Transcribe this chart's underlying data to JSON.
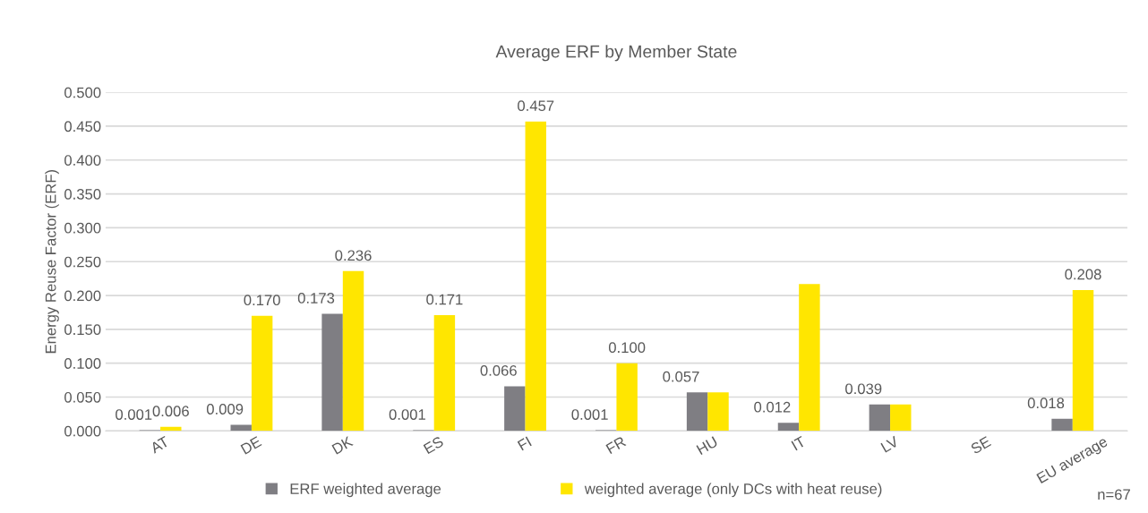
{
  "chart_data": {
    "type": "bar",
    "title": "Average ERF by Member State",
    "ylabel": "Energy Reuse Factor (ERF)",
    "categories": [
      "AT",
      "DE",
      "DK",
      "ES",
      "FI",
      "FR",
      "HU",
      "IT",
      "LV",
      "SE",
      "EU average"
    ],
    "series": [
      {
        "name": "ERF weighted average",
        "color": "#7f7e83",
        "values": [
          0.001,
          0.009,
          0.173,
          0.001,
          0.066,
          0.001,
          0.057,
          0.012,
          0.039,
          null,
          0.018
        ],
        "value_labels": [
          "0.001",
          "0.009",
          "0.173",
          "0.001",
          "0.066",
          "0.001",
          "0.057",
          "0.012",
          "0.039",
          null,
          "0.018"
        ]
      },
      {
        "name": "weighted average (only DCs with heat reuse)",
        "color": "#ffe600",
        "values": [
          0.006,
          0.17,
          0.236,
          0.171,
          0.457,
          0.1,
          0.057,
          0.217,
          0.039,
          null,
          0.208
        ],
        "value_labels": [
          "0.006",
          "0.170",
          "0.236",
          "0.171",
          "0.457",
          "0.100",
          null,
          null,
          null,
          null,
          "0.208"
        ]
      }
    ],
    "ylim": [
      0,
      0.5
    ],
    "yticks": [
      {
        "value": 0,
        "label": "0.000"
      },
      {
        "value": 0.05,
        "label": "0.050"
      },
      {
        "value": 0.1,
        "label": "0.100"
      },
      {
        "value": 0.15,
        "label": "0.150"
      },
      {
        "value": 0.2,
        "label": "0.200"
      },
      {
        "value": 0.25,
        "label": "0.250"
      },
      {
        "value": 0.3,
        "label": "0.300"
      },
      {
        "value": 0.35,
        "label": "0.350"
      },
      {
        "value": 0.4,
        "label": "0.400"
      },
      {
        "value": 0.45,
        "label": "0.450"
      },
      {
        "value": 0.5,
        "label": "0.500"
      }
    ],
    "grid": "y",
    "legend": "bottom",
    "annotations": [
      "n=67"
    ]
  }
}
